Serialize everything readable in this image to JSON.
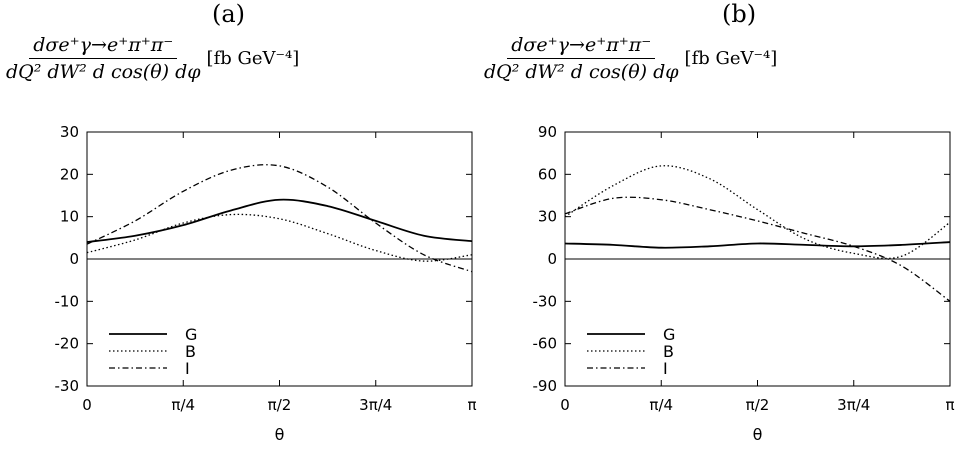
{
  "chart_data": [
    {
      "type": "line",
      "panel_label": "(a)",
      "ylabel_numerator": "dσe⁺γ→e⁺π⁺π⁻",
      "ylabel_denominator": "dQ² dW² d cos(θ) dφ",
      "ylabel_unit": "[fb GeV⁻⁴]",
      "xlabel": "θ",
      "xlim": [
        0,
        3.1416
      ],
      "ylim": [
        -30,
        30
      ],
      "x_ticks": [
        0,
        0.7854,
        1.5708,
        2.3562,
        3.1416
      ],
      "x_tick_labels": [
        "0",
        "π/4",
        "π/2",
        "3π/4",
        "π"
      ],
      "y_ticks": [
        -30,
        -20,
        -10,
        0,
        10,
        20,
        30
      ],
      "y_tick_labels": [
        "-30",
        "-20",
        "-10",
        "0",
        "10",
        "20",
        "30"
      ],
      "zero_line": true,
      "legend_position": "bottom-left",
      "series": [
        {
          "name": "G",
          "style": "solid",
          "x": [
            0,
            0.3927,
            0.7854,
            1.1781,
            1.5708,
            1.9635,
            2.3562,
            2.7489,
            3.1416
          ],
          "y": [
            4,
            5.5,
            8,
            11.5,
            14,
            12.5,
            9,
            5.5,
            4.2
          ]
        },
        {
          "name": "B",
          "style": "dotted",
          "x": [
            0,
            0.3927,
            0.7854,
            1.1781,
            1.5708,
            1.9635,
            2.3562,
            2.7489,
            3.1416
          ],
          "y": [
            1.5,
            4.5,
            8.5,
            10.5,
            9.5,
            6,
            2,
            -0.5,
            1
          ]
        },
        {
          "name": "I",
          "style": "dashdot",
          "x": [
            0,
            0.3927,
            0.7854,
            1.1781,
            1.5708,
            1.9635,
            2.3562,
            2.7489,
            3.1416
          ],
          "y": [
            3.5,
            9,
            16,
            21,
            22,
            17,
            8.5,
            1,
            -3
          ]
        }
      ]
    },
    {
      "type": "line",
      "panel_label": "(b)",
      "ylabel_numerator": "dσe⁺γ→e⁺π⁺π⁻",
      "ylabel_denominator": "dQ² dW² d cos(θ) dφ",
      "ylabel_unit": "[fb GeV⁻⁴]",
      "xlabel": "θ",
      "xlim": [
        0,
        3.1416
      ],
      "ylim": [
        -90,
        90
      ],
      "x_ticks": [
        0,
        0.7854,
        1.5708,
        2.3562,
        3.1416
      ],
      "x_tick_labels": [
        "0",
        "π/4",
        "π/2",
        "3π/4",
        "π"
      ],
      "y_ticks": [
        -90,
        -60,
        -30,
        0,
        30,
        60,
        90
      ],
      "y_tick_labels": [
        "-90",
        "-60",
        "-30",
        "0",
        "30",
        "60",
        "90"
      ],
      "zero_line": true,
      "legend_position": "bottom-left",
      "series": [
        {
          "name": "G",
          "style": "solid",
          "x": [
            0,
            0.3927,
            0.7854,
            1.1781,
            1.5708,
            1.9635,
            2.3562,
            2.7489,
            3.1416
          ],
          "y": [
            11,
            10,
            8,
            9,
            11,
            10,
            9,
            10,
            12
          ]
        },
        {
          "name": "B",
          "style": "dotted",
          "x": [
            0,
            0.3927,
            0.7854,
            1.1781,
            1.5708,
            1.9635,
            2.3562,
            2.7489,
            3.1416
          ],
          "y": [
            30,
            52,
            66,
            57,
            35,
            14,
            4,
            2,
            26
          ]
        },
        {
          "name": "I",
          "style": "dashdot",
          "x": [
            0,
            0.3927,
            0.7854,
            1.1781,
            1.5708,
            1.9635,
            2.3562,
            2.7489,
            3.1416
          ],
          "y": [
            32,
            43,
            42,
            35,
            27,
            18,
            9,
            -5,
            -30
          ]
        }
      ]
    }
  ]
}
